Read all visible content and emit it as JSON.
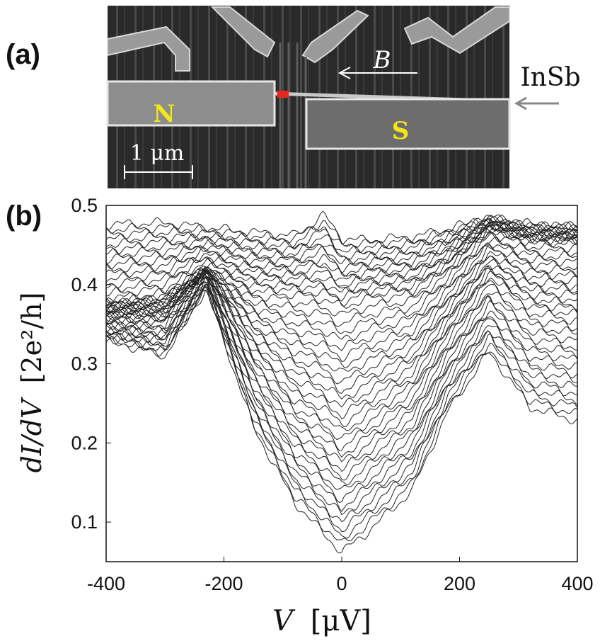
{
  "panel_a": {
    "label": "(a)",
    "left_contact_label": "N",
    "right_contact_label": "S",
    "field_label": "B",
    "nanowire_label": "InSb",
    "scale_bar_label": "1 μm",
    "highlight_color": "#e8281e",
    "contact_label_color": "#f2e61a"
  },
  "chart_data": {
    "type": "line",
    "panel_label": "(b)",
    "xlabel_var": "V",
    "xlabel_unit": "[μV]",
    "ylabel_var": "dI/dV",
    "ylabel_unit": "[2e²/h]",
    "xlim": [
      -400,
      400
    ],
    "ylim": [
      0.05,
      0.5
    ],
    "xticks": [
      "-400",
      "-200",
      "0",
      "200",
      "400"
    ],
    "yticks": [
      "0.1",
      "0.2",
      "0.3",
      "0.4",
      "0.5"
    ],
    "grid": false,
    "line_color": "#222222",
    "n_traces": 48,
    "series": [
      {
        "x": [
          -400,
          -300,
          -230,
          -150,
          -80,
          -30,
          0,
          40,
          120,
          180,
          250,
          320,
          400
        ],
        "values": [
          0.33,
          0.31,
          0.395,
          0.22,
          0.125,
          0.085,
          0.062,
          0.085,
          0.14,
          0.24,
          0.315,
          0.245,
          0.228
        ]
      },
      {
        "x": [
          -400,
          -300,
          -230,
          -150,
          -80,
          -30,
          0,
          40,
          120,
          180,
          250,
          320,
          400
        ],
        "values": [
          0.36,
          0.36,
          0.415,
          0.31,
          0.25,
          0.23,
          0.21,
          0.23,
          0.27,
          0.34,
          0.41,
          0.37,
          0.36
        ]
      },
      {
        "x": [
          -400,
          -300,
          -230,
          -150,
          -80,
          -30,
          0,
          40,
          120,
          180,
          250,
          320,
          400
        ],
        "values": [
          0.378,
          0.385,
          0.42,
          0.395,
          0.39,
          0.385,
          0.375,
          0.385,
          0.39,
          0.42,
          0.47,
          0.455,
          0.455
        ]
      },
      {
        "x": [
          -400,
          -300,
          -230,
          -150,
          -80,
          -30,
          0,
          40,
          120,
          180,
          250,
          320,
          400
        ],
        "values": [
          0.476,
          0.478,
          0.472,
          0.466,
          0.462,
          0.488,
          0.458,
          0.456,
          0.46,
          0.47,
          0.485,
          0.476,
          0.474
        ]
      }
    ]
  }
}
